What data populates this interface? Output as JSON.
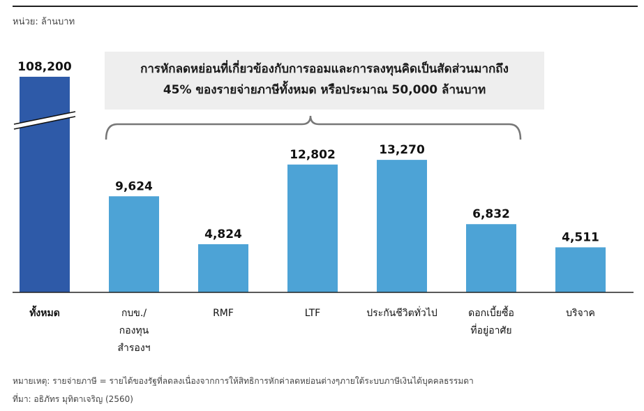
{
  "unit_label": "หน่วย: ล้านบาท",
  "callout": {
    "line1": "การหักลดหย่อนที่เกี่ยวข้องกับการออมและการลงทุนคิดเป็นสัดส่วนมากถึง",
    "line2": "45% ของรายจ่ายภาษีทั้งหมด หรือประมาณ 50,000 ล้านบาท"
  },
  "chart_data": {
    "type": "bar",
    "categories": [
      [
        "ทั้งหมด"
      ],
      [
        "กบข./",
        "กองทุน",
        "สำรองฯ"
      ],
      [
        "RMF"
      ],
      [
        "LTF"
      ],
      [
        "ประกันชีวิตทั่วไป"
      ],
      [
        "ดอกเบี้ยซื้อ",
        "ที่อยู่อาศัย"
      ],
      [
        "บริจาค"
      ]
    ],
    "values": [
      108200,
      9624,
      4824,
      12802,
      13270,
      6832,
      4511
    ],
    "value_labels": [
      "108,200",
      "9,624",
      "4,824",
      "12,802",
      "13,270",
      "6,832",
      "4,511"
    ],
    "axis_break_on_first_bar": true,
    "colors": {
      "total": "#2e5aa8",
      "component": "#4da3d6",
      "brace": "#777777",
      "axis": "#222222"
    }
  },
  "footnotes": {
    "note": "หมายเหตุ: รายจ่ายภาษี = รายได้ของรัฐที่ลดลงเนื่องจากการให้สิทธิการหักค่าลดหย่อนต่างๆภายใต้ระบบภาษีเงินได้บุคคลธรรมดา",
    "source": "ที่มา: อธิภัทร มุทิตาเจริญ (2560)"
  }
}
